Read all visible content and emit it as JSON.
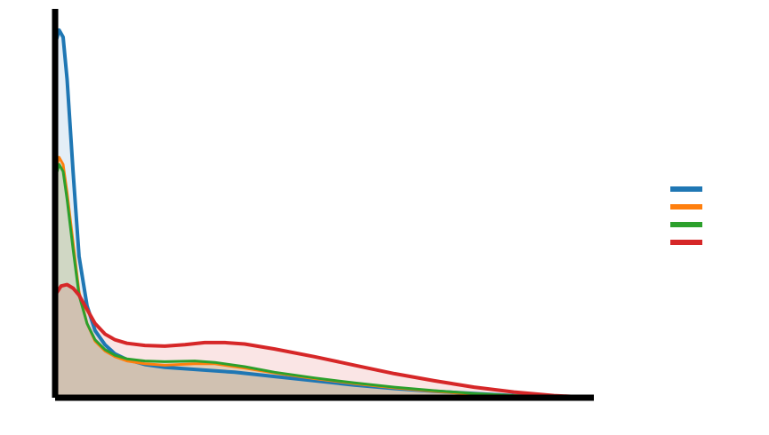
{
  "chart_data": {
    "type": "area",
    "title": "",
    "xlabel": "",
    "ylabel": "",
    "xlim": [
      0,
      270
    ],
    "ylim": [
      0,
      0.055
    ],
    "x_ticks": [],
    "y_ticks": [],
    "grid": false,
    "legend_placement": "center-right",
    "series": [
      {
        "color": "#1f77b4",
        "x": [
          0,
          2,
          4,
          6,
          9,
          12,
          16,
          20,
          25,
          30,
          36,
          45,
          55,
          70,
          90,
          110,
          130,
          150,
          170,
          190,
          210,
          230,
          250
        ],
        "y": [
          0.05,
          0.052,
          0.051,
          0.045,
          0.032,
          0.02,
          0.013,
          0.0095,
          0.0075,
          0.0062,
          0.0054,
          0.0047,
          0.0043,
          0.004,
          0.0036,
          0.003,
          0.0024,
          0.0018,
          0.0013,
          0.0009,
          0.0006,
          0.0003,
          0.0001
        ]
      },
      {
        "color": "#ff7f0e",
        "x": [
          0,
          2,
          4,
          6,
          9,
          12,
          16,
          20,
          25,
          30,
          36,
          45,
          55,
          70,
          80,
          95,
          110,
          130,
          150,
          170,
          190,
          210,
          230,
          250
        ],
        "y": [
          0.032,
          0.034,
          0.033,
          0.029,
          0.022,
          0.015,
          0.0105,
          0.008,
          0.0066,
          0.0058,
          0.0052,
          0.0048,
          0.0046,
          0.0048,
          0.0048,
          0.0042,
          0.0035,
          0.0027,
          0.002,
          0.0014,
          0.0009,
          0.0005,
          0.0003,
          0.0001
        ]
      },
      {
        "color": "#2ca02c",
        "x": [
          0,
          2,
          4,
          6,
          9,
          12,
          16,
          20,
          25,
          30,
          36,
          45,
          55,
          70,
          80,
          95,
          110,
          130,
          150,
          170,
          190,
          210,
          230,
          250
        ],
        "y": [
          0.031,
          0.033,
          0.032,
          0.028,
          0.021,
          0.0145,
          0.0105,
          0.0082,
          0.0068,
          0.006,
          0.0055,
          0.0052,
          0.0051,
          0.0052,
          0.005,
          0.0044,
          0.0036,
          0.0028,
          0.0021,
          0.0015,
          0.001,
          0.0006,
          0.0003,
          0.0001
        ]
      },
      {
        "color": "#d62728",
        "x": [
          0,
          3,
          6,
          9,
          12,
          16,
          20,
          25,
          30,
          36,
          45,
          55,
          65,
          75,
          85,
          95,
          110,
          130,
          150,
          170,
          190,
          210,
          230,
          250,
          265
        ],
        "y": [
          0.0145,
          0.0158,
          0.016,
          0.0155,
          0.0145,
          0.0125,
          0.0105,
          0.009,
          0.0082,
          0.0077,
          0.0074,
          0.0073,
          0.0075,
          0.0078,
          0.0078,
          0.0076,
          0.0069,
          0.0058,
          0.0046,
          0.0034,
          0.0024,
          0.0015,
          0.0008,
          0.0003,
          0.0001
        ]
      }
    ]
  }
}
